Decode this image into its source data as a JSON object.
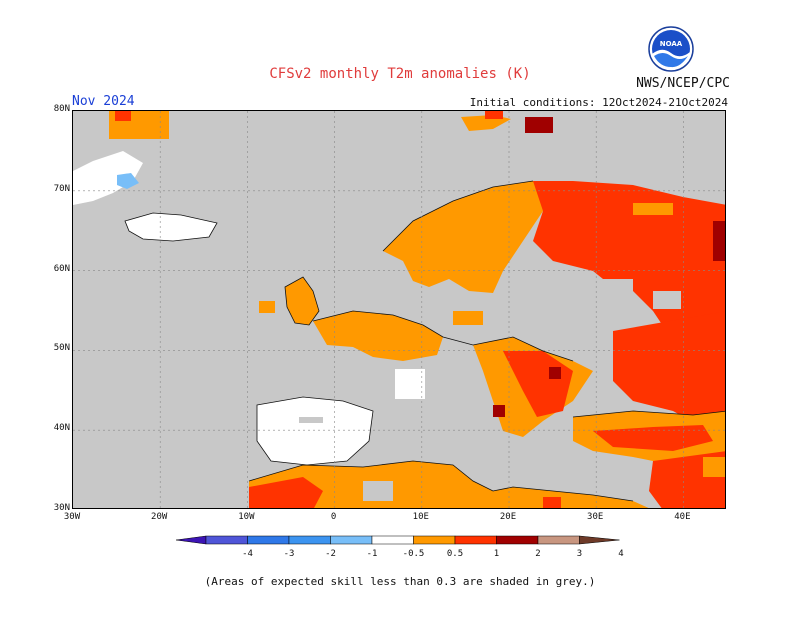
{
  "title": "CFSv2 monthly T2m anomalies (K)",
  "agency": "NWS/NCEP/CPC",
  "month": "Nov 2024",
  "initial_conditions": "Initial conditions: 12Oct2024-21Oct2024",
  "footnote": "(Areas of expected skill less than 0.3 are shaded in grey.)",
  "logo_text": "NOAA",
  "map": {
    "lon_range": [
      -30,
      45
    ],
    "lat_range": [
      30,
      80
    ],
    "lon_ticks": [
      "30W",
      "20W",
      "10W",
      "0",
      "10E",
      "20E",
      "30E",
      "40E"
    ],
    "lat_ticks": [
      "30N",
      "40N",
      "50N",
      "60N",
      "70N",
      "80N"
    ],
    "grid": true
  },
  "colorbar": {
    "tick_labels": [
      "-4",
      "-3",
      "-2",
      "-1",
      "-0.5",
      "0.5",
      "1",
      "2",
      "3",
      "4"
    ],
    "colors": [
      "#3c14b4",
      "#4f55d8",
      "#2f78e8",
      "#3c94f0",
      "#78bef8",
      "#ffffff",
      "#ff9900",
      "#ff3300",
      "#a00000",
      "#c89680",
      "#6e3a28"
    ]
  }
}
